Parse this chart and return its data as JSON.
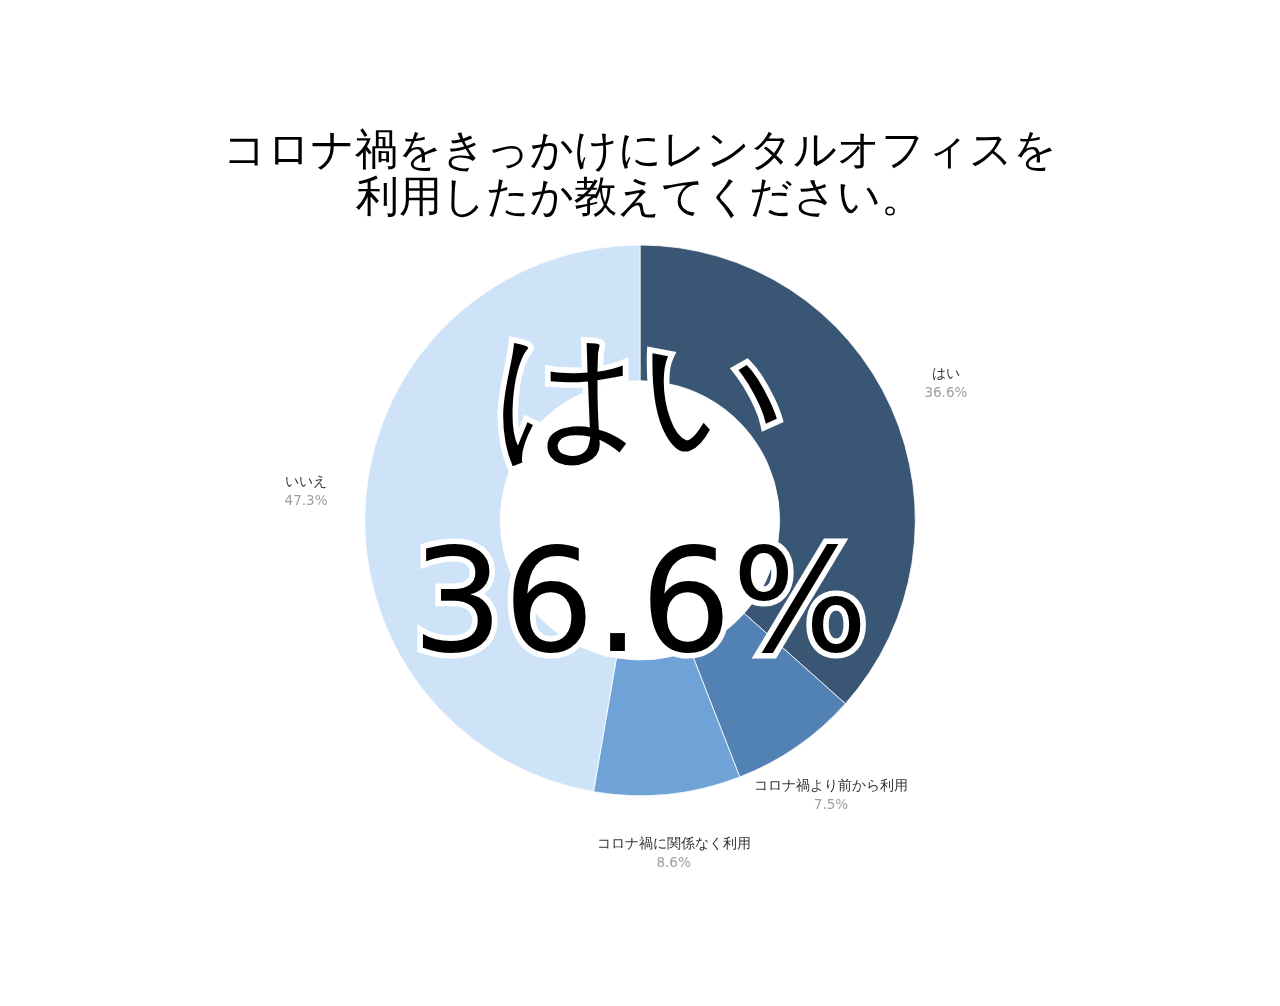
{
  "chart_data": {
    "type": "donut",
    "title": "コロナ禍をきっかけにレンタルオフィスを利用したか教えてください。",
    "categories": [
      "はい",
      "コロナ禍より前から利用",
      "コロナ禍に関係なく利用",
      "いいえ"
    ],
    "values": [
      36.6,
      7.5,
      8.6,
      47.3
    ],
    "colors": [
      "#3a5675",
      "#5281b4",
      "#6fa3d8",
      "#cfe3f8"
    ],
    "value_labels": [
      "36.6%",
      "7.5%",
      "8.6%",
      "47.3%"
    ],
    "legend": false,
    "annotations": [
      "はい",
      "36.6%"
    ]
  }
}
